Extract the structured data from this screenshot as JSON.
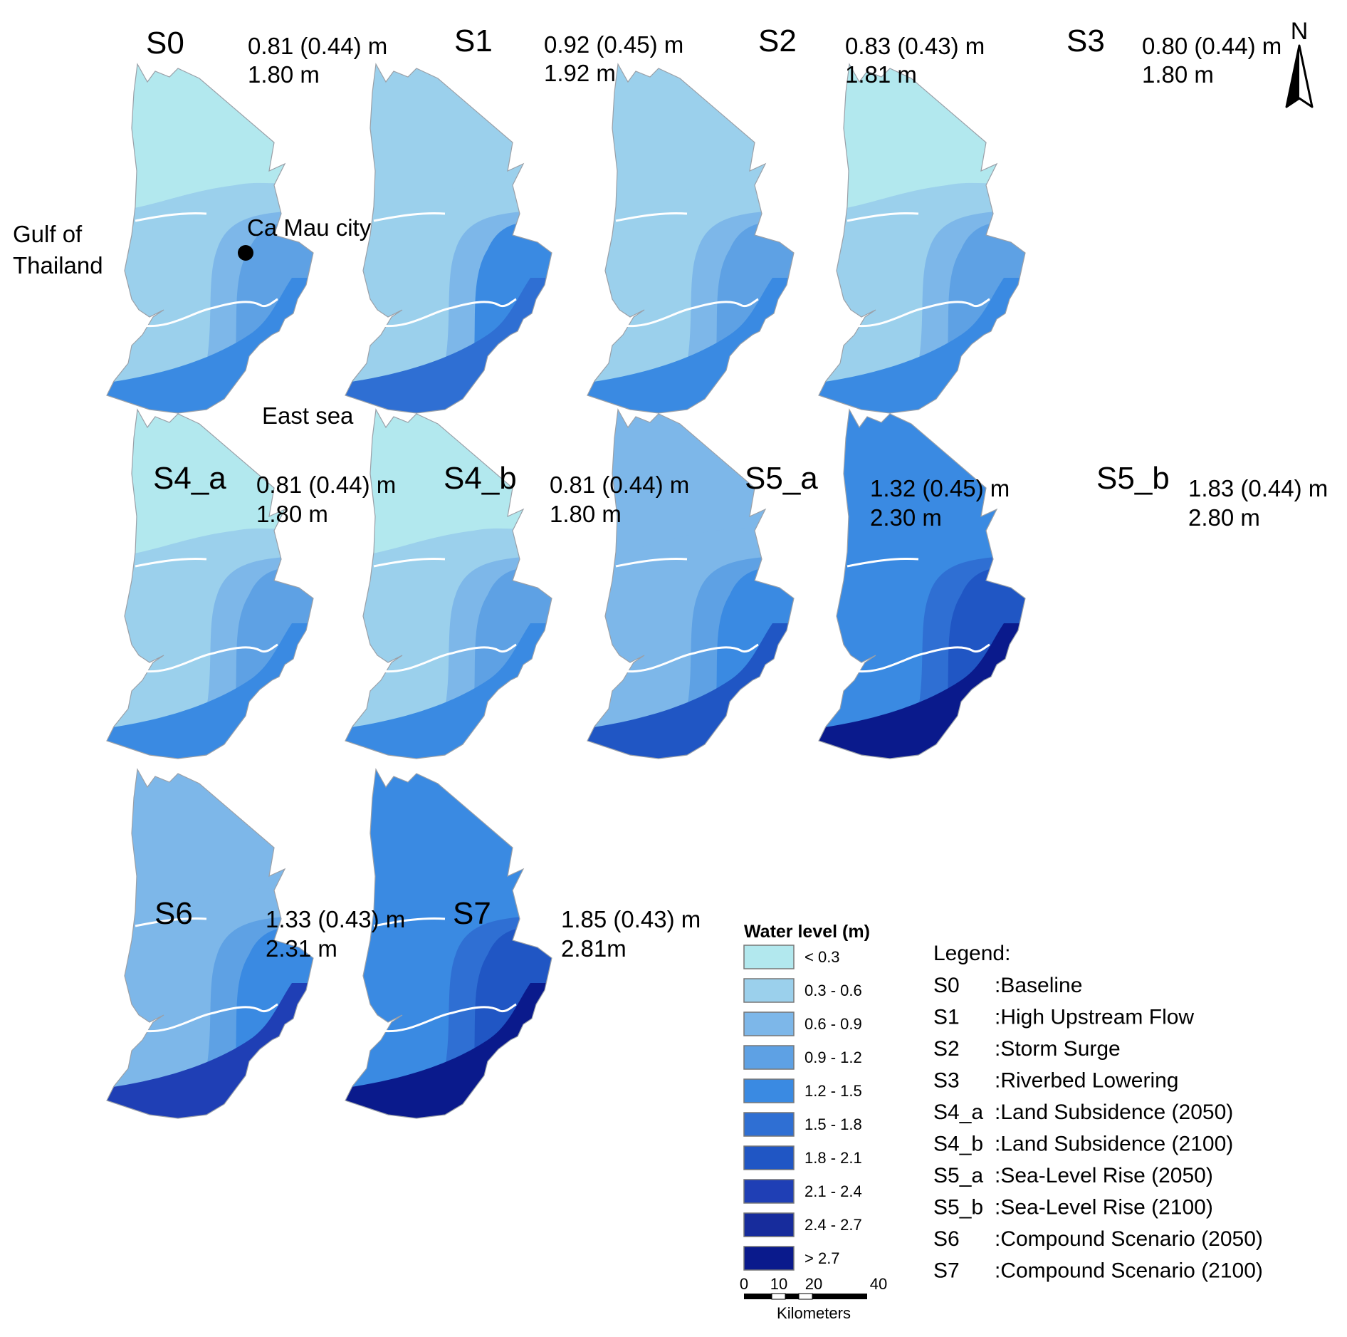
{
  "panels": [
    {
      "code": "S0",
      "mean": "0.81 (0.44) m",
      "max": "1.80 m",
      "colors": [
        "#b2e8ee",
        "#9bd0ec",
        "#7db7e9",
        "#5ea1e4",
        "#3a8ae2"
      ]
    },
    {
      "code": "S1",
      "mean": "0.92 (0.45) m",
      "max": "1.92 m",
      "colors": [
        "#9bd0ec",
        "#9bd0ec",
        "#7db7e9",
        "#3a8ae2",
        "#2f6fd3"
      ]
    },
    {
      "code": "S2",
      "mean": "0.83 (0.43) m",
      "max": "1.81 m",
      "colors": [
        "#9bd0ec",
        "#9bd0ec",
        "#7db7e9",
        "#5ea1e4",
        "#3a8ae2"
      ]
    },
    {
      "code": "S3",
      "mean": "0.80 (0.44) m",
      "max": "1.80 m",
      "colors": [
        "#b2e8ee",
        "#9bd0ec",
        "#7db7e9",
        "#5ea1e4",
        "#3a8ae2"
      ]
    },
    {
      "code": "S4_a",
      "mean": "0.81 (0.44) m",
      "max": "1.80 m",
      "colors": [
        "#b2e8ee",
        "#9bd0ec",
        "#7db7e9",
        "#5ea1e4",
        "#3a8ae2"
      ]
    },
    {
      "code": "S4_b",
      "mean": "0.81 (0.44) m",
      "max": "1.80 m",
      "colors": [
        "#b2e8ee",
        "#9bd0ec",
        "#7db7e9",
        "#5ea1e4",
        "#3a8ae2"
      ]
    },
    {
      "code": "S5_a",
      "mean": "1.32 (0.45) m",
      "max": "2.30 m",
      "colors": [
        "#7db7e9",
        "#7db7e9",
        "#5ea1e4",
        "#3a8ae2",
        "#2056c4"
      ]
    },
    {
      "code": "S5_b",
      "mean": "1.83 (0.44) m",
      "max": "2.80 m",
      "colors": [
        "#3a8ae2",
        "#3a8ae2",
        "#2f6fd3",
        "#2056c4",
        "#0a1a8c"
      ]
    },
    {
      "code": "S6",
      "mean": "1.33 (0.43) m",
      "max": "2.31 m",
      "colors": [
        "#7db7e9",
        "#7db7e9",
        "#5ea1e4",
        "#3a8ae2",
        "#1f3fb5"
      ]
    },
    {
      "code": "S7",
      "mean": "1.85 (0.43) m",
      "max": "2.81m",
      "colors": [
        "#3a8ae2",
        "#3a8ae2",
        "#2f6fd3",
        "#2056c4",
        "#0a1a8c"
      ]
    }
  ],
  "places": {
    "gulf_line1": "Gulf of",
    "gulf_line2": "Thailand",
    "city": "Ca Mau city",
    "sea": "East sea"
  },
  "north_arrow": "N",
  "water_legend": {
    "title": "Water level (m)",
    "classes": [
      {
        "label": "< 0.3",
        "color": "#b2e8ee"
      },
      {
        "label": "0.3 - 0.6",
        "color": "#9bd0ec"
      },
      {
        "label": "0.6 - 0.9",
        "color": "#7db7e9"
      },
      {
        "label": "0.9 - 1.2",
        "color": "#5ea1e4"
      },
      {
        "label": "1.2 - 1.5",
        "color": "#3a8ae2"
      },
      {
        "label": "1.5 - 1.8",
        "color": "#2f6fd3"
      },
      {
        "label": "1.8 - 2.1",
        "color": "#2056c4"
      },
      {
        "label": "2.1 - 2.4",
        "color": "#1f3fb5"
      },
      {
        "label": "2.4 - 2.7",
        "color": "#172c9c"
      },
      {
        "label": "> 2.7",
        "color": "#0a1a8c"
      }
    ]
  },
  "scalebar": {
    "ticks": [
      "0",
      "10",
      "20",
      "40"
    ],
    "unit": "Kilometers"
  },
  "scenario_legend": {
    "title": "Legend:",
    "items": [
      {
        "code": "S0",
        "desc": ":Baseline"
      },
      {
        "code": "S1",
        "desc": ":High Upstream Flow"
      },
      {
        "code": "S2",
        "desc": ":Storm Surge"
      },
      {
        "code": "S3",
        "desc": ":Riverbed Lowering"
      },
      {
        "code": "S4_a",
        "desc": ":Land Subsidence (2050)"
      },
      {
        "code": "S4_b",
        "desc": ":Land Subsidence (2100)"
      },
      {
        "code": "S5_a",
        "desc": ":Sea-Level Rise (2050)"
      },
      {
        "code": "S5_b",
        "desc": ":Sea-Level Rise (2100)"
      },
      {
        "code": "S6",
        "desc": ":Compound Scenario (2050)"
      },
      {
        "code": "S7",
        "desc": ":Compound Scenario (2100)"
      }
    ]
  }
}
